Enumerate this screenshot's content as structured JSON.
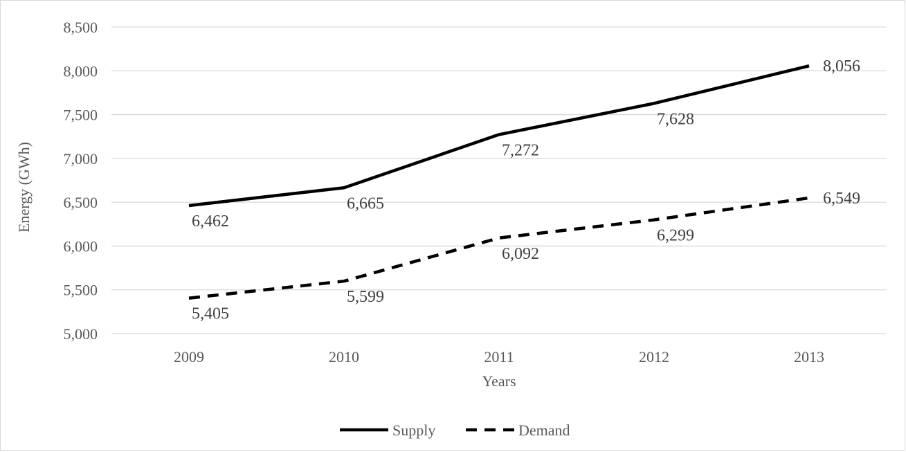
{
  "chart_data": {
    "type": "line",
    "categories": [
      "2009",
      "2010",
      "2011",
      "2012",
      "2013"
    ],
    "series": [
      {
        "name": "Supply",
        "values": [
          6462,
          6665,
          7272,
          7628,
          8056
        ],
        "labels": [
          "6,462",
          "6,665",
          "7,272",
          "7,628",
          "8,056"
        ],
        "line_style": "solid",
        "color": "#000000"
      },
      {
        "name": "Demand",
        "values": [
          5405,
          5599,
          6092,
          6299,
          6549
        ],
        "labels": [
          "5,405",
          "5,599",
          "6,092",
          "6,299",
          "6,549"
        ],
        "line_style": "dashed",
        "color": "#000000"
      }
    ],
    "title": "",
    "xlabel": "Years",
    "ylabel": "Energy (GWh)",
    "ylim": [
      5000,
      8500
    ],
    "yticks": [
      5000,
      5500,
      6000,
      6500,
      7000,
      7500,
      8000,
      8500
    ],
    "ytick_labels": [
      "5,000",
      "5,500",
      "6,000",
      "6,500",
      "7,000",
      "7,500",
      "8,000",
      "8,500"
    ],
    "grid": true,
    "legend_position": "bottom"
  }
}
